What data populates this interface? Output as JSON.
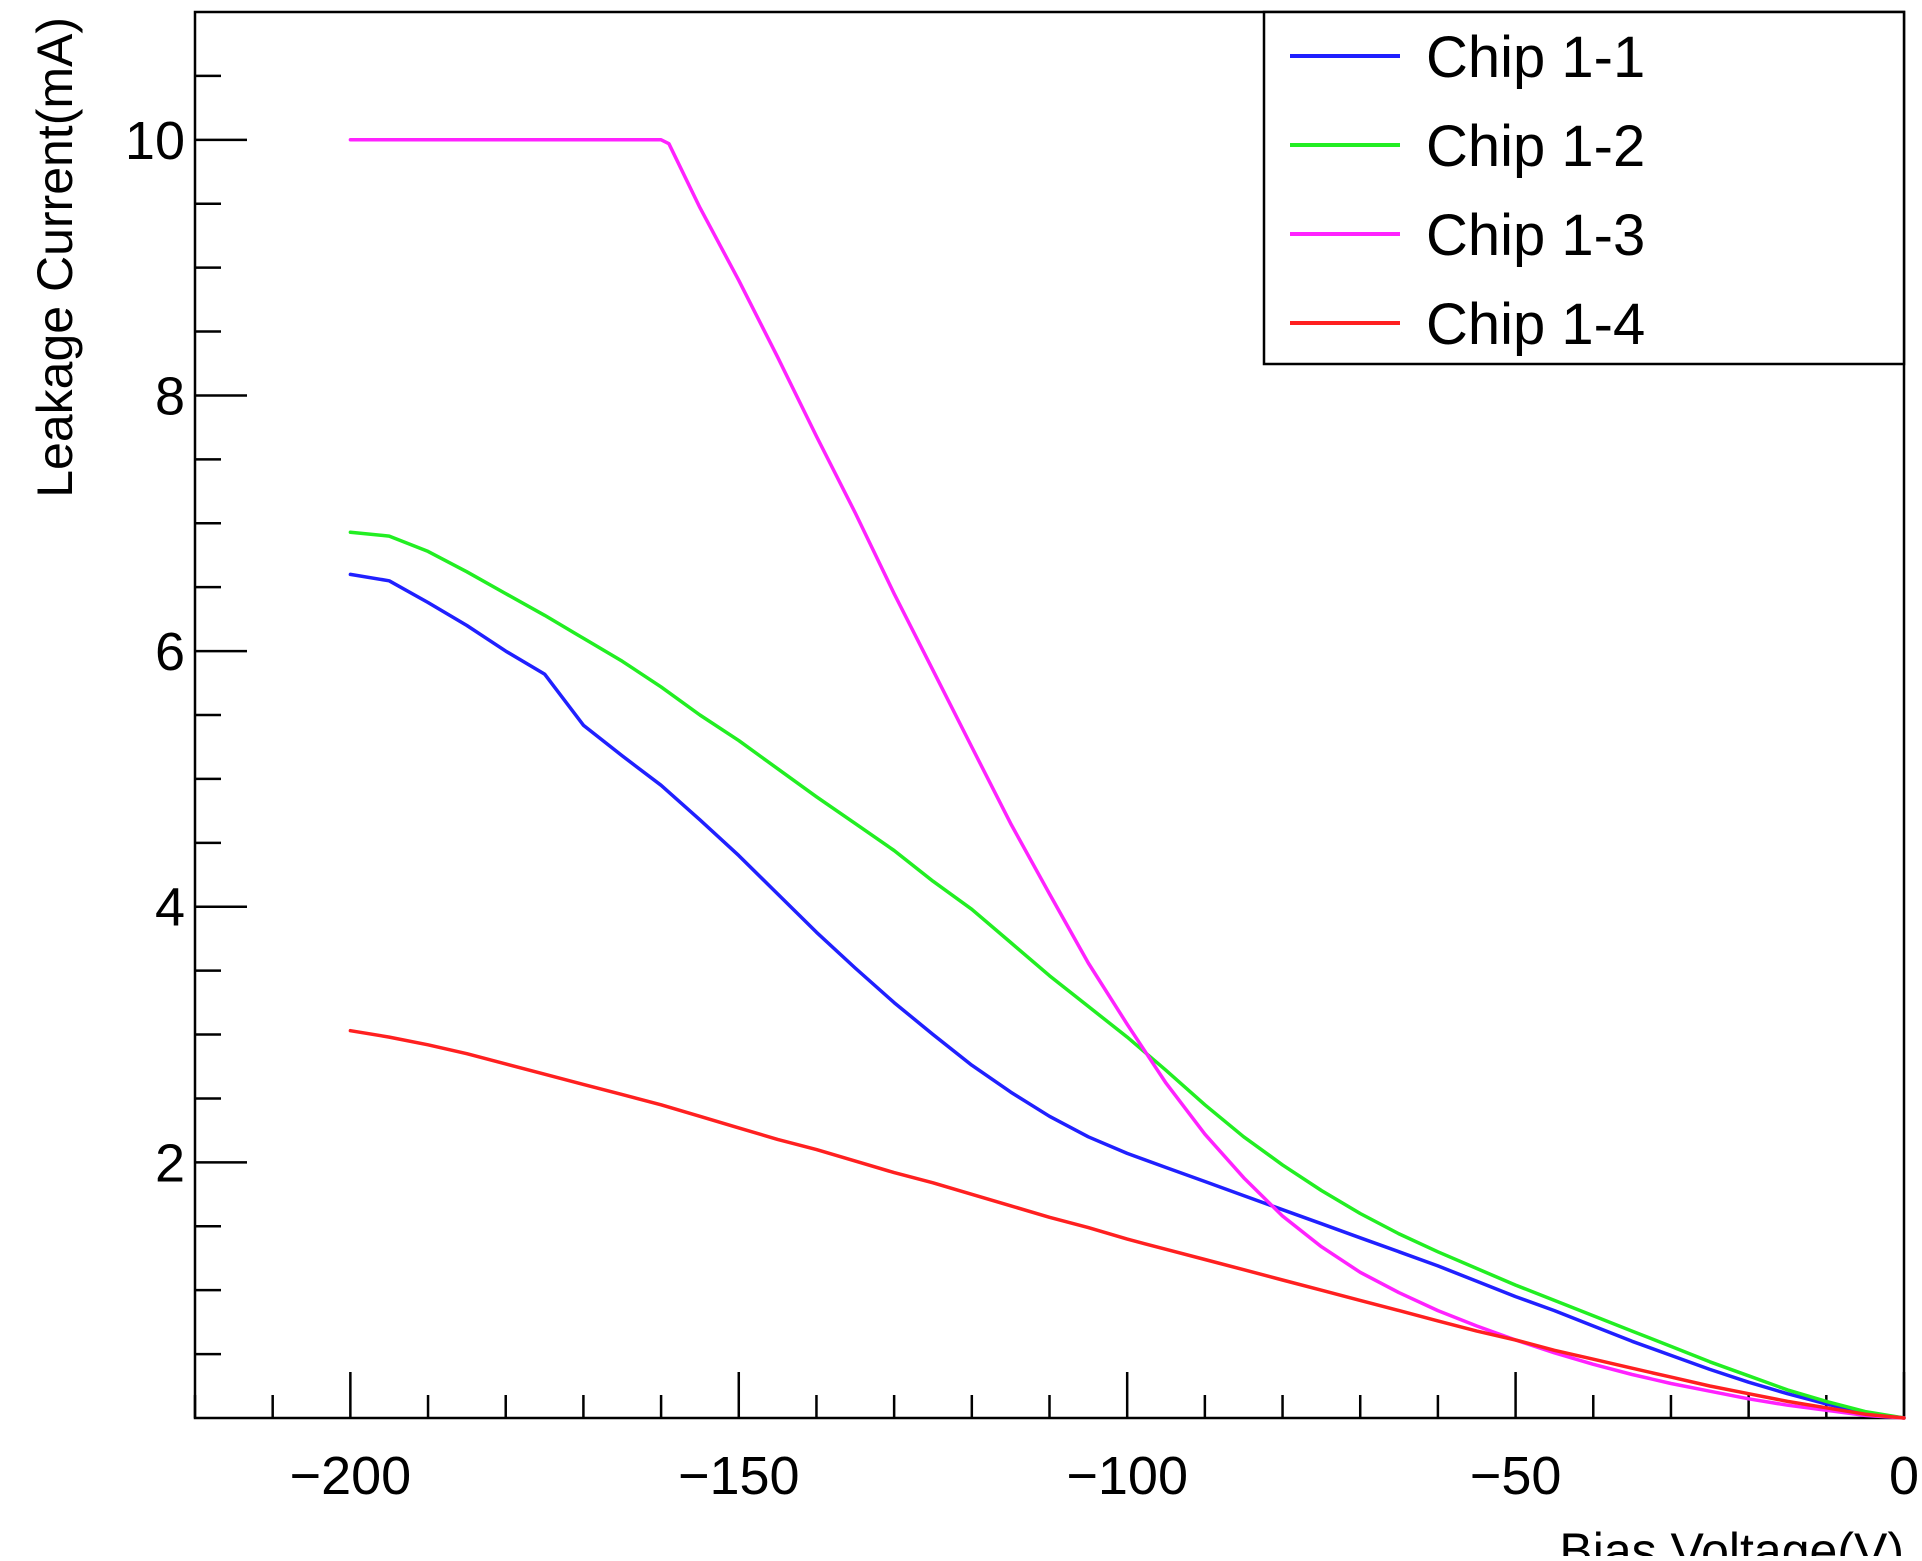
{
  "chart_data": {
    "type": "line",
    "title": "",
    "xlabel": "Bias Voltage(V)",
    "ylabel": "Leakage Current(mA)",
    "xlim": [
      -220,
      0
    ],
    "ylim": [
      0,
      11
    ],
    "x_ticks": [
      -200,
      -150,
      -100,
      -50,
      0
    ],
    "x_tick_labels": [
      "−200",
      "−150",
      "−100",
      "−50",
      "0"
    ],
    "y_ticks": [
      2,
      4,
      6,
      8,
      10
    ],
    "y_tick_labels": [
      "2",
      "4",
      "6",
      "8",
      "10"
    ],
    "grid": false,
    "legend_position": "top-right",
    "series": [
      {
        "name": "Chip 1-1",
        "color": "#2020ff",
        "points": [
          [
            -200,
            6.6
          ],
          [
            -195,
            6.55
          ],
          [
            -190,
            6.38
          ],
          [
            -185,
            6.2
          ],
          [
            -180,
            6.0
          ],
          [
            -175,
            5.82
          ],
          [
            -170,
            5.42
          ],
          [
            -165,
            5.18
          ],
          [
            -160,
            4.95
          ],
          [
            -155,
            4.68
          ],
          [
            -150,
            4.4
          ],
          [
            -145,
            4.1
          ],
          [
            -140,
            3.8
          ],
          [
            -135,
            3.52
          ],
          [
            -130,
            3.25
          ],
          [
            -125,
            3.0
          ],
          [
            -120,
            2.76
          ],
          [
            -115,
            2.55
          ],
          [
            -110,
            2.36
          ],
          [
            -105,
            2.2
          ],
          [
            -100,
            2.07
          ],
          [
            -95,
            1.96
          ],
          [
            -90,
            1.85
          ],
          [
            -85,
            1.74
          ],
          [
            -80,
            1.63
          ],
          [
            -75,
            1.52
          ],
          [
            -70,
            1.41
          ],
          [
            -65,
            1.3
          ],
          [
            -60,
            1.19
          ],
          [
            -55,
            1.07
          ],
          [
            -50,
            0.95
          ],
          [
            -45,
            0.84
          ],
          [
            -40,
            0.72
          ],
          [
            -35,
            0.6
          ],
          [
            -30,
            0.49
          ],
          [
            -25,
            0.38
          ],
          [
            -20,
            0.28
          ],
          [
            -15,
            0.19
          ],
          [
            -10,
            0.11
          ],
          [
            -5,
            0.04
          ],
          [
            0,
            0.0
          ]
        ]
      },
      {
        "name": "Chip 1-2",
        "color": "#22ee22",
        "points": [
          [
            -200,
            6.93
          ],
          [
            -195,
            6.9
          ],
          [
            -190,
            6.78
          ],
          [
            -185,
            6.62
          ],
          [
            -180,
            6.45
          ],
          [
            -175,
            6.28
          ],
          [
            -170,
            6.1
          ],
          [
            -165,
            5.92
          ],
          [
            -160,
            5.72
          ],
          [
            -155,
            5.5
          ],
          [
            -150,
            5.3
          ],
          [
            -145,
            5.08
          ],
          [
            -140,
            4.86
          ],
          [
            -135,
            4.65
          ],
          [
            -130,
            4.44
          ],
          [
            -125,
            4.2
          ],
          [
            -120,
            3.98
          ],
          [
            -115,
            3.72
          ],
          [
            -110,
            3.46
          ],
          [
            -105,
            3.22
          ],
          [
            -100,
            2.98
          ],
          [
            -95,
            2.72
          ],
          [
            -90,
            2.45
          ],
          [
            -85,
            2.2
          ],
          [
            -80,
            1.98
          ],
          [
            -75,
            1.78
          ],
          [
            -70,
            1.6
          ],
          [
            -65,
            1.44
          ],
          [
            -60,
            1.3
          ],
          [
            -55,
            1.17
          ],
          [
            -50,
            1.04
          ],
          [
            -45,
            0.92
          ],
          [
            -40,
            0.8
          ],
          [
            -35,
            0.68
          ],
          [
            -30,
            0.56
          ],
          [
            -25,
            0.44
          ],
          [
            -20,
            0.33
          ],
          [
            -15,
            0.22
          ],
          [
            -10,
            0.13
          ],
          [
            -5,
            0.05
          ],
          [
            0,
            0.0
          ]
        ]
      },
      {
        "name": "Chip 1-3",
        "color": "#ff22ff",
        "points": [
          [
            -200,
            10.0
          ],
          [
            -190,
            10.0
          ],
          [
            -180,
            10.0
          ],
          [
            -170,
            10.0
          ],
          [
            -165,
            10.0
          ],
          [
            -160,
            10.0
          ],
          [
            -159,
            9.97
          ],
          [
            -155,
            9.47
          ],
          [
            -150,
            8.9
          ],
          [
            -145,
            8.3
          ],
          [
            -140,
            7.68
          ],
          [
            -135,
            7.08
          ],
          [
            -130,
            6.45
          ],
          [
            -125,
            5.85
          ],
          [
            -120,
            5.25
          ],
          [
            -115,
            4.65
          ],
          [
            -110,
            4.1
          ],
          [
            -105,
            3.56
          ],
          [
            -100,
            3.08
          ],
          [
            -95,
            2.62
          ],
          [
            -90,
            2.22
          ],
          [
            -85,
            1.88
          ],
          [
            -80,
            1.58
          ],
          [
            -75,
            1.34
          ],
          [
            -70,
            1.14
          ],
          [
            -65,
            0.98
          ],
          [
            -60,
            0.84
          ],
          [
            -55,
            0.72
          ],
          [
            -50,
            0.61
          ],
          [
            -45,
            0.51
          ],
          [
            -40,
            0.42
          ],
          [
            -35,
            0.34
          ],
          [
            -30,
            0.27
          ],
          [
            -25,
            0.21
          ],
          [
            -20,
            0.15
          ],
          [
            -15,
            0.1
          ],
          [
            -10,
            0.06
          ],
          [
            -5,
            0.02
          ],
          [
            0,
            0.0
          ]
        ]
      },
      {
        "name": "Chip 1-4",
        "color": "#ff2020",
        "points": [
          [
            -200,
            3.03
          ],
          [
            -195,
            2.98
          ],
          [
            -190,
            2.92
          ],
          [
            -185,
            2.85
          ],
          [
            -180,
            2.77
          ],
          [
            -175,
            2.69
          ],
          [
            -170,
            2.61
          ],
          [
            -165,
            2.53
          ],
          [
            -160,
            2.45
          ],
          [
            -155,
            2.36
          ],
          [
            -150,
            2.27
          ],
          [
            -145,
            2.18
          ],
          [
            -140,
            2.1
          ],
          [
            -135,
            2.01
          ],
          [
            -130,
            1.92
          ],
          [
            -125,
            1.84
          ],
          [
            -120,
            1.75
          ],
          [
            -115,
            1.66
          ],
          [
            -110,
            1.57
          ],
          [
            -105,
            1.49
          ],
          [
            -100,
            1.4
          ],
          [
            -95,
            1.32
          ],
          [
            -90,
            1.24
          ],
          [
            -85,
            1.16
          ],
          [
            -80,
            1.08
          ],
          [
            -75,
            1.0
          ],
          [
            -70,
            0.92
          ],
          [
            -65,
            0.84
          ],
          [
            -60,
            0.76
          ],
          [
            -55,
            0.68
          ],
          [
            -50,
            0.61
          ],
          [
            -45,
            0.53
          ],
          [
            -40,
            0.46
          ],
          [
            -35,
            0.39
          ],
          [
            -30,
            0.32
          ],
          [
            -25,
            0.25
          ],
          [
            -20,
            0.19
          ],
          [
            -15,
            0.13
          ],
          [
            -10,
            0.08
          ],
          [
            -5,
            0.03
          ],
          [
            0,
            0.0
          ]
        ]
      }
    ]
  }
}
